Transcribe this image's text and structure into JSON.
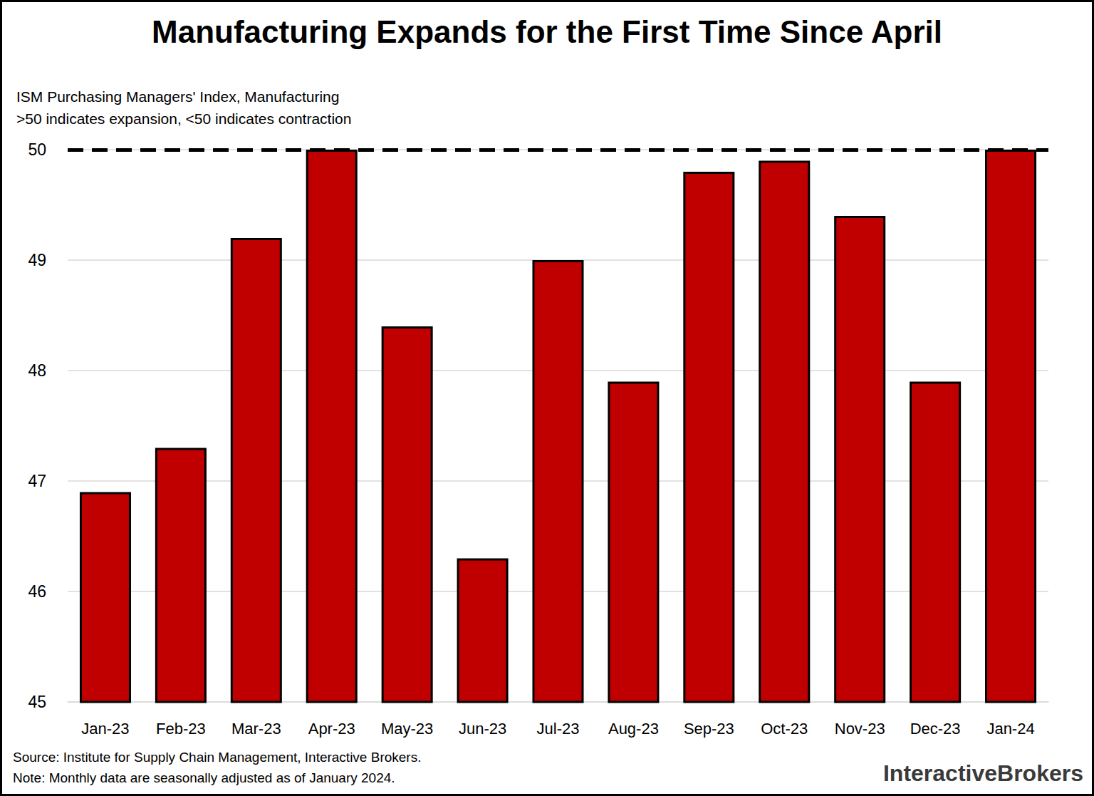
{
  "chart_data": {
    "type": "bar",
    "title": "Manufacturing Expands for the First Time Since April",
    "subtitle": [
      "ISM Purchasing Managers' Index, Manufacturing",
      ">50 indicates expansion, <50 indicates contraction"
    ],
    "categories": [
      "Jan-23",
      "Feb-23",
      "Mar-23",
      "Apr-23",
      "May-23",
      "Jun-23",
      "Jul-23",
      "Aug-23",
      "Sep-23",
      "Oct-23",
      "Nov-23",
      "Dec-23",
      "Jan-24"
    ],
    "values": [
      46.9,
      47.3,
      49.2,
      50.0,
      48.4,
      46.3,
      49.0,
      47.9,
      49.8,
      49.9,
      49.4,
      47.9,
      50.0
    ],
    "color": "#c00000",
    "ylim": [
      45,
      50
    ],
    "yticks": [
      45,
      46,
      47,
      48,
      49,
      50
    ],
    "grid": true,
    "reference_line": 50,
    "source": "Source: Institute for Supply Chain Management, Interactive Brokers.",
    "note": "Note: Monthly data are seasonally adjusted as of January 2024.",
    "logo": "InteractiveBrokers"
  }
}
